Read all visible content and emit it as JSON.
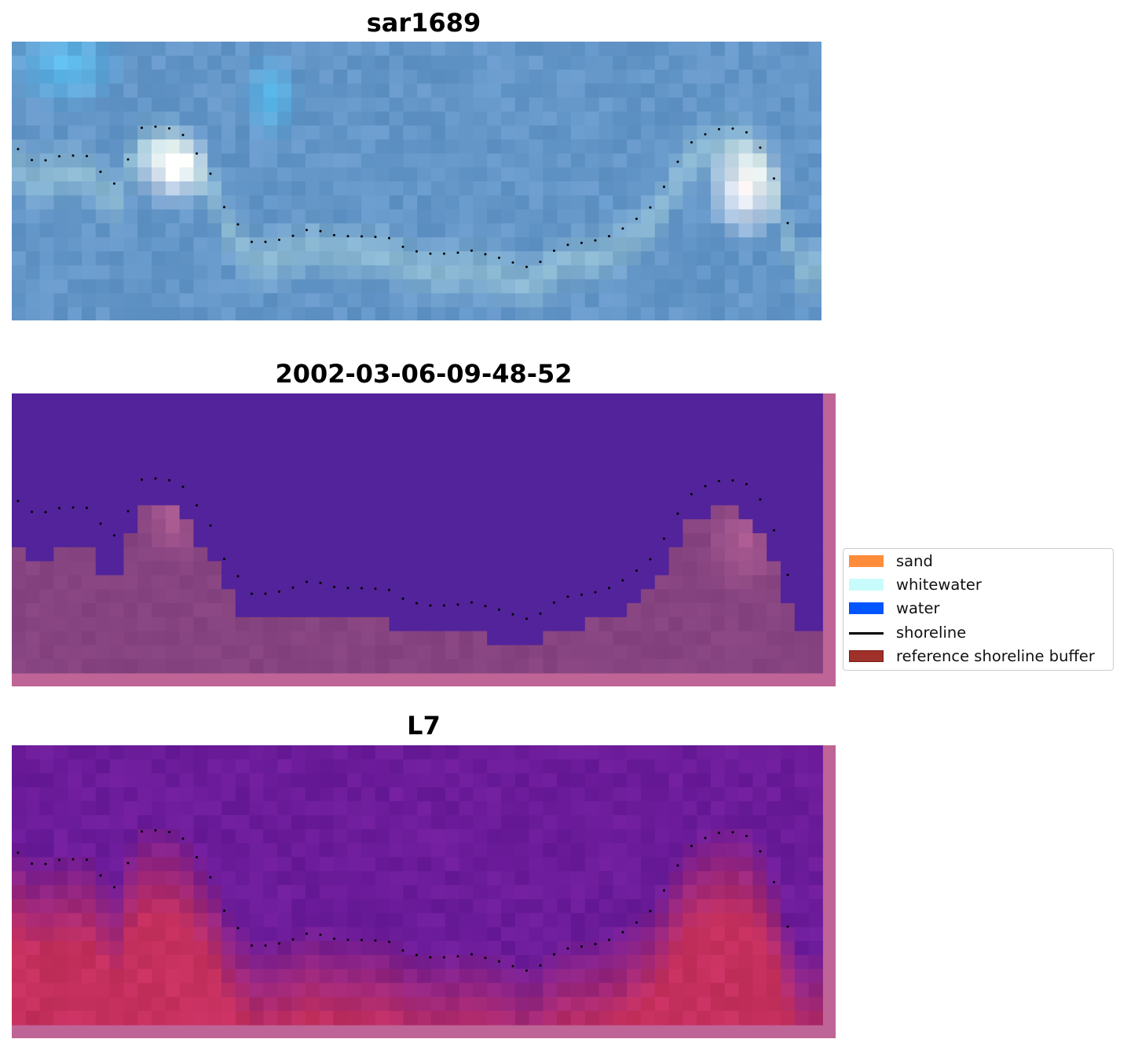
{
  "panels": {
    "sar_title": "sar1689",
    "date_title": "2002-03-06-09-48-52",
    "sat_title": "L7"
  },
  "legend": {
    "items": [
      {
        "label": "sand",
        "kind": "patch",
        "color": "#ff8c3a"
      },
      {
        "label": "whitewater",
        "kind": "patch",
        "color": "#c8fcfc"
      },
      {
        "label": "water",
        "kind": "patch",
        "color": "#0055ff"
      },
      {
        "label": "shoreline",
        "kind": "line",
        "color": "#000000"
      },
      {
        "label": "reference shoreline buffer",
        "kind": "patch",
        "color": "#a0302a",
        "edge": "#7a1a16"
      }
    ]
  },
  "colors": {
    "sar_base": "#6a9cc8",
    "sar_light": "#5fc4f2",
    "classified_water": "#52239a",
    "classified_land": "#864480",
    "classified_edge": "#bf6496",
    "ndwi_water": "#6c1c9a",
    "ndwi_land": "#c5305e",
    "shoreline_dots": "#000000"
  }
}
